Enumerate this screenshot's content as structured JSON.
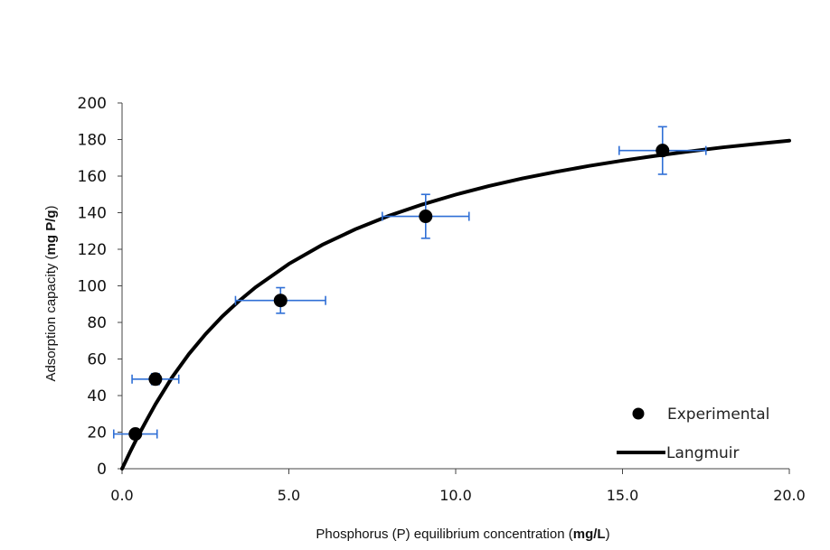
{
  "chart_data": {
    "type": "scatter",
    "title": "",
    "xlabel_prefix": "Phosphorus (P) equilibrium concentration (",
    "xlabel_unit": "mg/L",
    "xlabel_suffix": ")",
    "ylabel_prefix": "Adsorption capacity (",
    "ylabel_unit": "mg P/g",
    "ylabel_suffix": ")",
    "xlim": [
      0,
      20
    ],
    "ylim": [
      0,
      200
    ],
    "x_ticks": [
      "0.0",
      "5.0",
      "10.0",
      "15.0",
      "20.0"
    ],
    "y_ticks": [
      "0",
      "20",
      "40",
      "60",
      "80",
      "100",
      "120",
      "140",
      "160",
      "180",
      "200"
    ],
    "grid": false,
    "legend_position": "bottom-right",
    "series": [
      {
        "name": "Experimental",
        "kind": "points",
        "color": "#000000",
        "errorbar_color": "#2f6fd6",
        "points": [
          {
            "x": 0.4,
            "y": 19,
            "xerr": 0.65,
            "yerr": 2
          },
          {
            "x": 1.0,
            "y": 49,
            "xerr": 0.7,
            "yerr": 3
          },
          {
            "x": 4.75,
            "y": 92,
            "xerr": 1.35,
            "yerr": 7
          },
          {
            "x": 9.1,
            "y": 138,
            "xerr": 1.3,
            "yerr": 12
          },
          {
            "x": 16.2,
            "y": 174,
            "xerr": 1.3,
            "yerr": 13
          }
        ]
      },
      {
        "name": "Langmuir",
        "kind": "line",
        "color": "#000000",
        "curve": [
          [
            0,
            0
          ],
          [
            0.25,
            9.5
          ],
          [
            0.5,
            18.5
          ],
          [
            0.75,
            27
          ],
          [
            1.0,
            35.2
          ],
          [
            1.5,
            50
          ],
          [
            2.0,
            62.6
          ],
          [
            2.5,
            73.6
          ],
          [
            3.0,
            83.2
          ],
          [
            3.5,
            91.6
          ],
          [
            4.0,
            99.2
          ],
          [
            5.0,
            112
          ],
          [
            6.0,
            122.4
          ],
          [
            7.0,
            131
          ],
          [
            8.0,
            138.3
          ],
          [
            9.0,
            144.5
          ],
          [
            10.0,
            149.9
          ],
          [
            11.0,
            154.6
          ],
          [
            12.0,
            158.7
          ],
          [
            13.0,
            162.3
          ],
          [
            14.0,
            165.6
          ],
          [
            15.0,
            168.5
          ],
          [
            16.0,
            171.1
          ],
          [
            17.0,
            173.5
          ],
          [
            18.0,
            175.7
          ],
          [
            19.0,
            177.6
          ],
          [
            20.0,
            179.4
          ]
        ]
      }
    ]
  }
}
